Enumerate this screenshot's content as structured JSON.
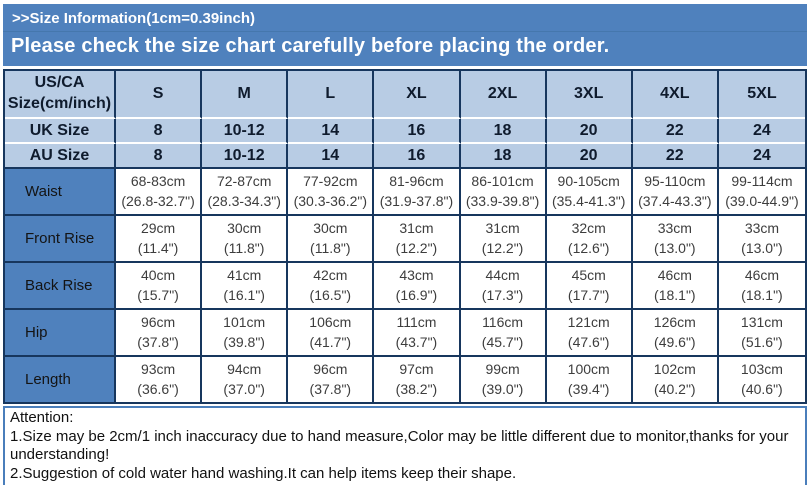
{
  "banner": {
    "title": ">>Size Information(1cm=0.39inch)",
    "subtitle": "Please check the size chart carefully before placing the order."
  },
  "size_chart": {
    "corner_header": "US/CA Size(cm/inch)",
    "columns": [
      "S",
      "M",
      "L",
      "XL",
      "2XL",
      "3XL",
      "4XL",
      "5XL"
    ],
    "size_rows": [
      {
        "label": "UK Size",
        "values": [
          "8",
          "10-12",
          "14",
          "16",
          "18",
          "20",
          "22",
          "24"
        ]
      },
      {
        "label": "AU Size",
        "values": [
          "8",
          "10-12",
          "14",
          "16",
          "18",
          "20",
          "22",
          "24"
        ]
      }
    ],
    "measure_rows": [
      {
        "label": "Waist",
        "cm": [
          "68-83cm",
          "72-87cm",
          "77-92cm",
          "81-96cm",
          "86-101cm",
          "90-105cm",
          "95-110cm",
          "99-114cm"
        ],
        "inch": [
          "(26.8-32.7\")",
          "(28.3-34.3\")",
          "(30.3-36.2\")",
          "(31.9-37.8\")",
          "(33.9-39.8\")",
          "(35.4-41.3\")",
          "(37.4-43.3\")",
          "(39.0-44.9\")"
        ]
      },
      {
        "label": "Front Rise",
        "cm": [
          "29cm",
          "30cm",
          "30cm",
          "31cm",
          "31cm",
          "32cm",
          "33cm",
          "33cm"
        ],
        "inch": [
          "(11.4\")",
          "(11.8\")",
          "(11.8\")",
          "(12.2\")",
          "(12.2\")",
          "(12.6\")",
          "(13.0\")",
          "(13.0\")"
        ]
      },
      {
        "label": "Back Rise",
        "cm": [
          "40cm",
          "41cm",
          "42cm",
          "43cm",
          "44cm",
          "45cm",
          "46cm",
          "46cm"
        ],
        "inch": [
          "(15.7\")",
          "(16.1\")",
          "(16.5\")",
          "(16.9\")",
          "(17.3\")",
          "(17.7\")",
          "(18.1\")",
          "(18.1\")"
        ]
      },
      {
        "label": "Hip",
        "cm": [
          "96cm",
          "101cm",
          "106cm",
          "111cm",
          "116cm",
          "121cm",
          "126cm",
          "131cm"
        ],
        "inch": [
          "(37.8\")",
          "(39.8\")",
          "(41.7\")",
          "(43.7\")",
          "(45.7\")",
          "(47.6\")",
          "(49.6\")",
          "(51.6\")"
        ]
      },
      {
        "label": "Length",
        "cm": [
          "93cm",
          "94cm",
          "96cm",
          "97cm",
          "99cm",
          "100cm",
          "102cm",
          "103cm"
        ],
        "inch": [
          "(36.6\")",
          "(37.0\")",
          "(37.8\")",
          "(38.2\")",
          "(39.0\")",
          "(39.4\")",
          "(40.2\")",
          "(40.6\")"
        ]
      }
    ]
  },
  "attention": {
    "heading": "Attention:",
    "notes": [
      "1.Size may be 2cm/1 inch inaccuracy due to hand measure,Color may be little different due to monitor,thanks for your understanding!",
      "2.Suggestion of cold water hand washing.It can help items keep their shape."
    ]
  },
  "colors": {
    "banner_blue": "#4f81bd",
    "light_blue_cell": "#b8cce4",
    "border_navy": "#17365d",
    "attention_border": "#4a7ebb"
  }
}
